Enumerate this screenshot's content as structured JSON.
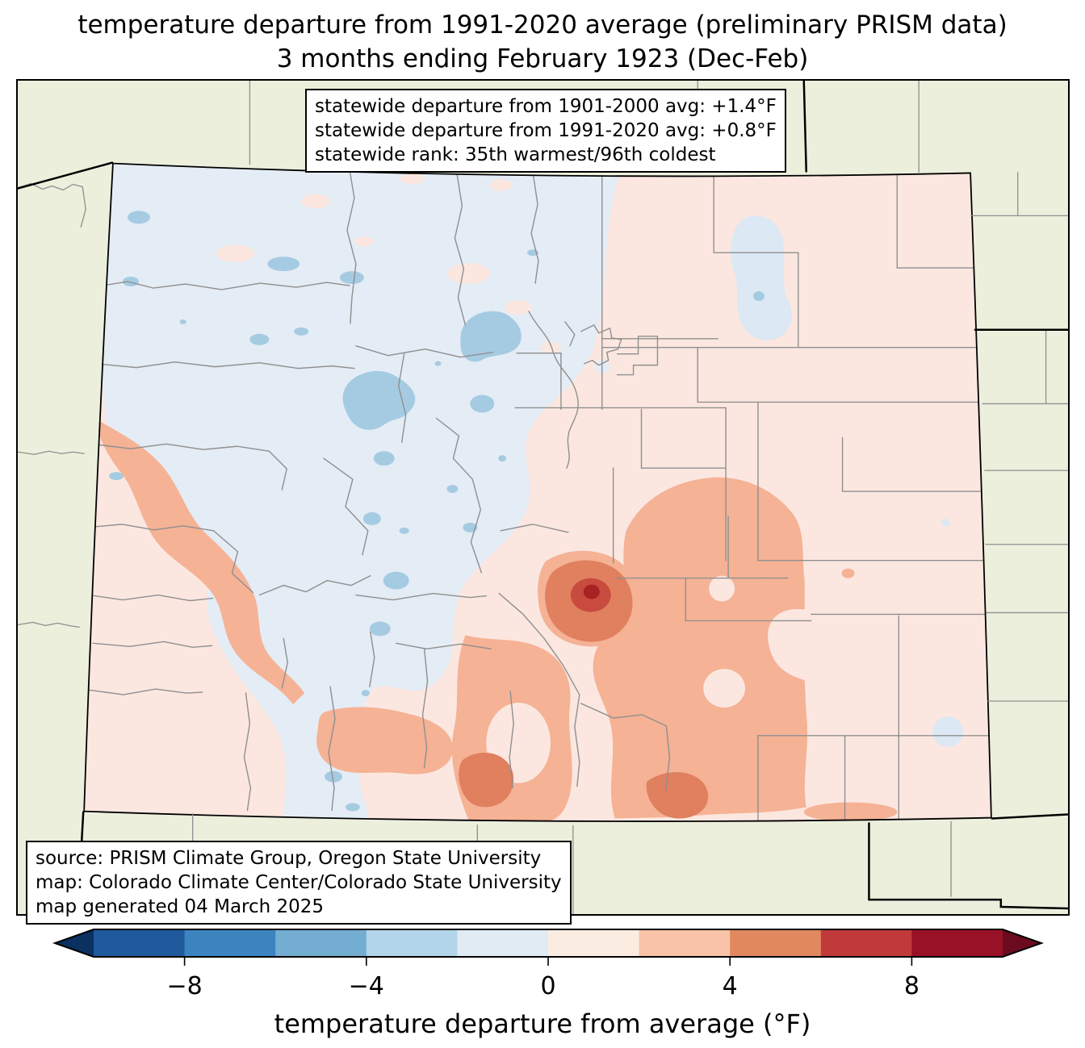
{
  "title": {
    "line1": "temperature departure from 1991-2020 average (preliminary PRISM data)",
    "line2": "3 months ending February 1923 (Dec-Feb)"
  },
  "stats_box": {
    "lines": [
      "statewide departure from 1901-2000 avg: +1.4°F",
      "statewide departure from 1991-2020 avg: +0.8°F",
      "statewide rank: 35th warmest/96th coldest"
    ]
  },
  "source_box": {
    "lines": [
      "source: PRISM Climate Group, Oregon State University",
      "map: Colorado Climate Center/Colorado State University",
      "map generated 04 March 2025"
    ]
  },
  "colorbar": {
    "label": "temperature departure from average (°F)",
    "range": [
      -10,
      10
    ],
    "tick_values": [
      -8,
      -4,
      0,
      4,
      8
    ],
    "tick_labels": [
      "−8",
      "−4",
      "0",
      "4",
      "8"
    ],
    "segment_bounds": [
      -10,
      -8,
      -6,
      -4,
      -2,
      0,
      2,
      4,
      6,
      8,
      10
    ],
    "segment_colors": [
      "#1e5a9c",
      "#3b84c0",
      "#74add2",
      "#b3d5e9",
      "#e0ebf4",
      "#fbece2",
      "#f8c3a6",
      "#e1885f",
      "#c13a3a",
      "#991127"
    ],
    "left_arrow_color": "#0b3161",
    "right_arrow_color": "#6c0b20"
  },
  "map": {
    "region": "Colorado",
    "palette": {
      "outside": "#ecefdc",
      "pink-base": "#fbe7e0",
      "blue-base": "#e4ecf5",
      "blue-mid": "#a5cbe2",
      "blue-pale": "#dce8f3",
      "peach": "#f5b295",
      "salmon-deep": "#e0805f",
      "red": "#c94a3e",
      "red-dark": "#a82125",
      "county-line": "#8f8f8f",
      "state-line": "#000000"
    }
  }
}
